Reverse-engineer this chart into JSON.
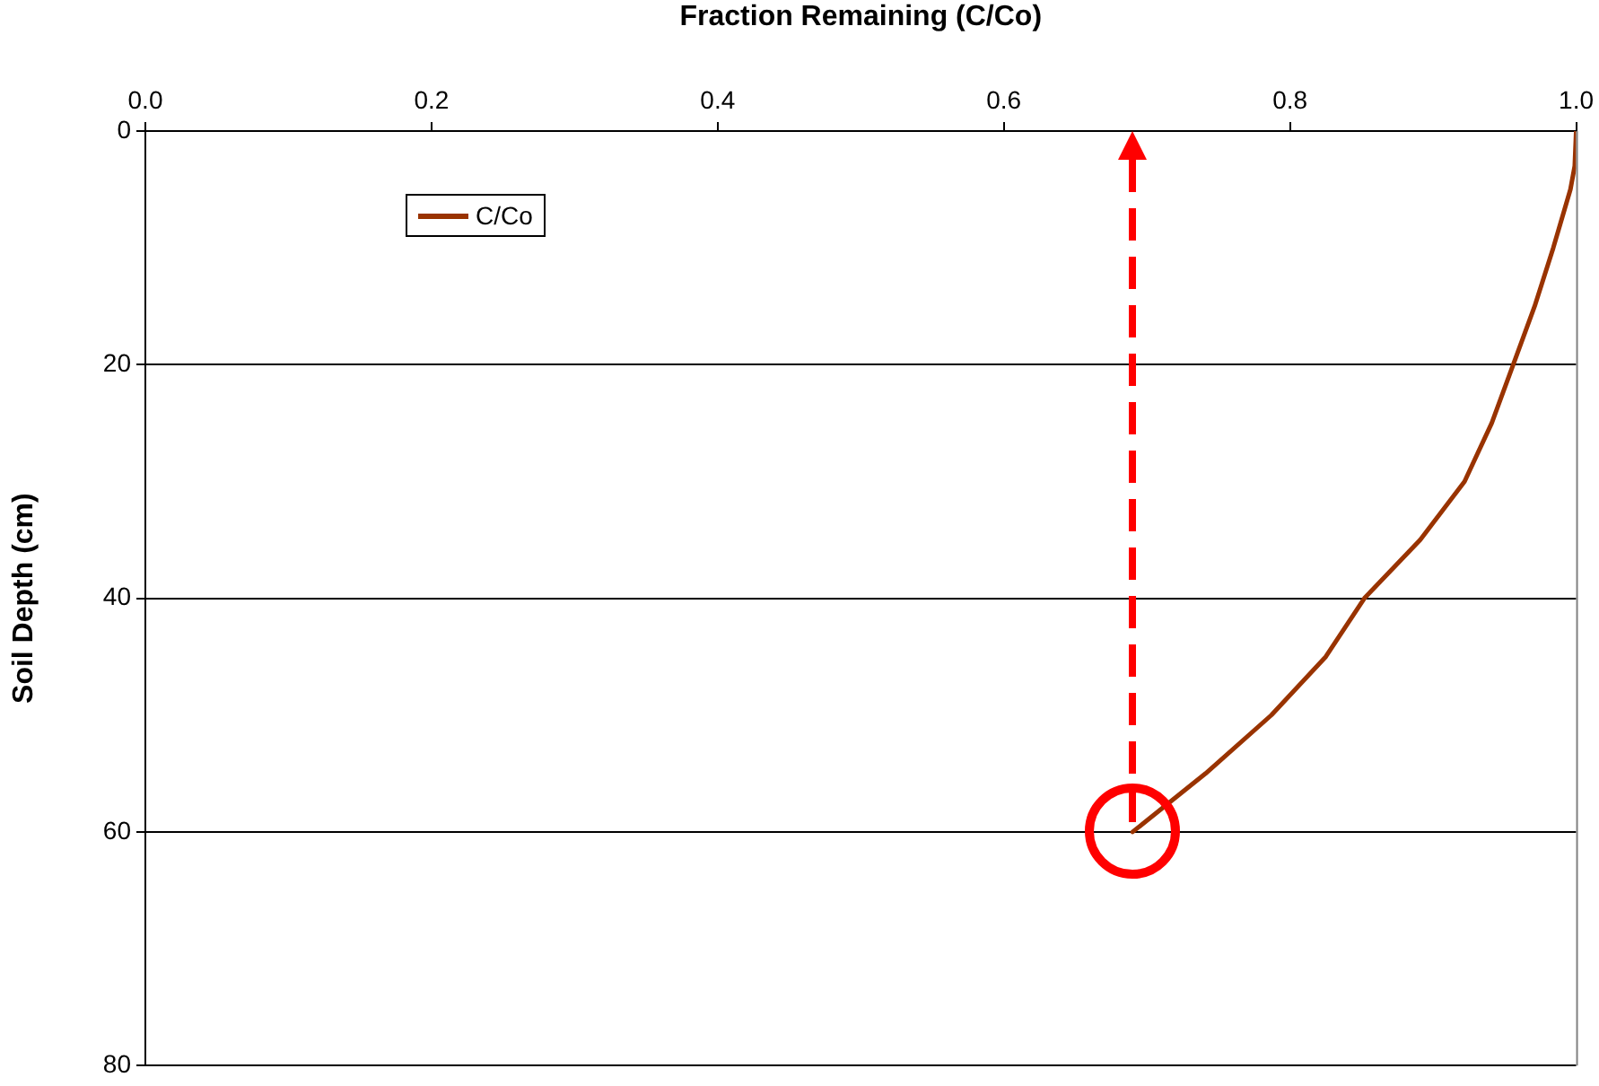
{
  "chart_data": {
    "type": "line",
    "xlabel": "Fraction Remaining (C/Co)",
    "ylabel": "Soil Depth (cm)",
    "xlim": [
      0,
      1
    ],
    "xticks": [
      {
        "value": 0,
        "label": "0.0"
      },
      {
        "value": 0.2,
        "label": "0.2"
      },
      {
        "value": 0.4,
        "label": "0.4"
      },
      {
        "value": 0.6,
        "label": "0.6"
      },
      {
        "value": 0.8,
        "label": "0.8"
      },
      {
        "value": 1,
        "label": "1.0"
      }
    ],
    "ylim": [
      80,
      0
    ],
    "yticks": [
      0,
      20,
      40,
      60,
      80
    ],
    "grid": "y",
    "legend": "top left",
    "marker": "none",
    "line_style": "solid",
    "series": [
      {
        "name": "C/Co",
        "color": "#993300",
        "x": [
          1.0,
          0.999,
          0.996,
          0.984,
          0.971,
          0.956,
          0.941,
          0.922,
          0.891,
          0.852,
          0.825,
          0.787,
          0.741,
          0.69
        ],
        "values": [
          0,
          3,
          5,
          10,
          15,
          20,
          25,
          30,
          35,
          40,
          45,
          50,
          55,
          60
        ]
      }
    ]
  }
}
